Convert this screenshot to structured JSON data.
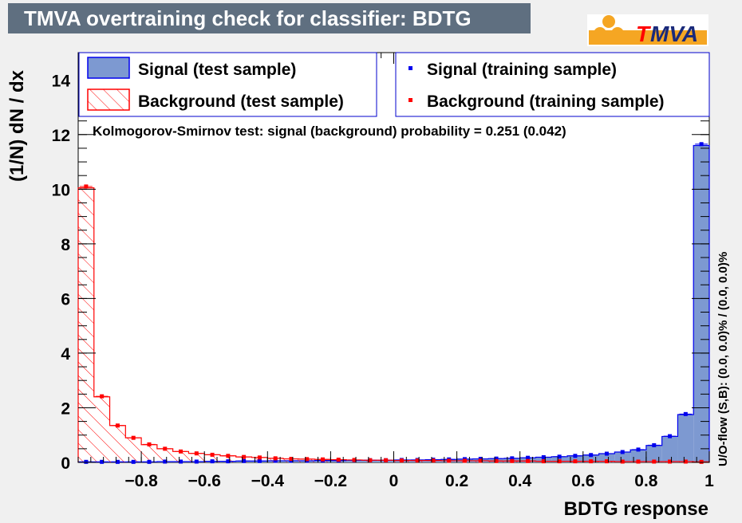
{
  "title": "TMVA overtraining check for classifier: BDTG",
  "logo": {
    "t": "T",
    "rest": "MVA"
  },
  "colors": {
    "signal_fill": "#7d99d1",
    "signal_line": "#0000ee",
    "background_line": "#ff0000",
    "title_bg": "#5f6f80",
    "logo_orange": "#f5a623"
  },
  "chart_data": {
    "type": "histogram",
    "xlabel": "BDTG response",
    "ylabel": "(1/N) dN / dx",
    "xlim": [
      -1,
      1
    ],
    "ylim": [
      0,
      15
    ],
    "x_ticks": [
      {
        "v": -0.8,
        "label": "−0.8"
      },
      {
        "v": -0.6,
        "label": "−0.6"
      },
      {
        "v": -0.4,
        "label": "−0.4"
      },
      {
        "v": -0.2,
        "label": "−0.2"
      },
      {
        "v": 0,
        "label": "0"
      },
      {
        "v": 0.2,
        "label": "0.2"
      },
      {
        "v": 0.4,
        "label": "0.4"
      },
      {
        "v": 0.6,
        "label": "0.6"
      },
      {
        "v": 0.8,
        "label": "0.8"
      },
      {
        "v": 1,
        "label": "1"
      }
    ],
    "y_ticks": [
      {
        "v": 0,
        "label": "0"
      },
      {
        "v": 2,
        "label": "2"
      },
      {
        "v": 4,
        "label": "4"
      },
      {
        "v": 6,
        "label": "6"
      },
      {
        "v": 8,
        "label": "8"
      },
      {
        "v": 10,
        "label": "10"
      },
      {
        "v": 12,
        "label": "12"
      },
      {
        "v": 14,
        "label": "14"
      }
    ],
    "bin_edges_start": -1,
    "bin_width": 0.05,
    "series": [
      {
        "name": "Signal (test sample)",
        "style": "filled",
        "values": [
          0.02,
          0.02,
          0.02,
          0.02,
          0.02,
          0.03,
          0.03,
          0.03,
          0.04,
          0.04,
          0.05,
          0.05,
          0.06,
          0.06,
          0.06,
          0.07,
          0.07,
          0.08,
          0.08,
          0.08,
          0.09,
          0.09,
          0.1,
          0.11,
          0.12,
          0.13,
          0.14,
          0.15,
          0.17,
          0.19,
          0.21,
          0.24,
          0.27,
          0.32,
          0.38,
          0.46,
          0.62,
          0.95,
          1.75,
          11.6
        ]
      },
      {
        "name": "Background (test sample)",
        "style": "hatched",
        "values": [
          10.05,
          2.4,
          1.35,
          0.9,
          0.65,
          0.5,
          0.4,
          0.33,
          0.28,
          0.24,
          0.2,
          0.18,
          0.15,
          0.13,
          0.12,
          0.11,
          0.1,
          0.09,
          0.08,
          0.08,
          0.07,
          0.07,
          0.07,
          0.06,
          0.06,
          0.06,
          0.05,
          0.05,
          0.05,
          0.04,
          0.04,
          0.04,
          0.04,
          0.04,
          0.03,
          0.03,
          0.03,
          0.03,
          0.03,
          0.02
        ]
      },
      {
        "name": "Signal (training sample)",
        "style": "points",
        "values": [
          0.02,
          0.02,
          0.02,
          0.02,
          0.02,
          0.03,
          0.03,
          0.03,
          0.04,
          0.04,
          0.05,
          0.05,
          0.06,
          0.06,
          0.06,
          0.07,
          0.07,
          0.08,
          0.08,
          0.08,
          0.09,
          0.09,
          0.1,
          0.11,
          0.12,
          0.13,
          0.14,
          0.15,
          0.17,
          0.19,
          0.21,
          0.24,
          0.27,
          0.32,
          0.38,
          0.47,
          0.63,
          0.96,
          1.77,
          11.65
        ]
      },
      {
        "name": "Background (training sample)",
        "style": "points",
        "values": [
          10.1,
          2.42,
          1.35,
          0.9,
          0.66,
          0.5,
          0.4,
          0.33,
          0.28,
          0.24,
          0.2,
          0.18,
          0.15,
          0.13,
          0.12,
          0.11,
          0.1,
          0.09,
          0.08,
          0.08,
          0.07,
          0.07,
          0.07,
          0.06,
          0.06,
          0.06,
          0.05,
          0.05,
          0.05,
          0.04,
          0.04,
          0.04,
          0.04,
          0.04,
          0.03,
          0.03,
          0.03,
          0.03,
          0.03,
          0.02
        ]
      }
    ],
    "ks_text": "Kolmogorov-Smirnov test: signal (background) probability = 0.251 (0.042)",
    "overflow_text": "U/O-flow (S,B): (0.0, 0.0)% / (0.0, 0.0)%"
  }
}
